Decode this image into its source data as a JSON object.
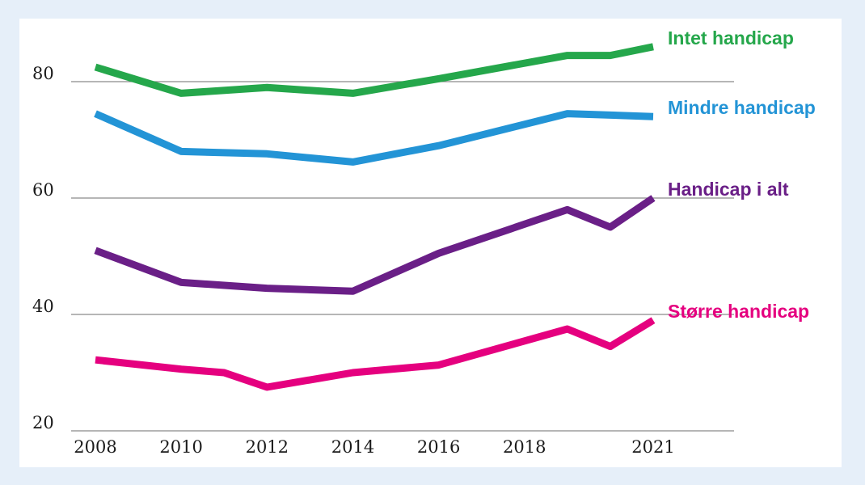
{
  "chart_data": {
    "type": "line",
    "title": "",
    "xlabel": "",
    "ylabel": "",
    "ylim": [
      20,
      90
    ],
    "xlim": [
      2008,
      2023
    ],
    "yticks": [
      20,
      40,
      60,
      80
    ],
    "xticks": [
      2008,
      2010,
      2012,
      2014,
      2016,
      2018,
      2021
    ],
    "xtick_labels": [
      "2008",
      "2010",
      "2012",
      "2014",
      "2016",
      "2018",
      "2021"
    ],
    "ytick_labels": [
      "20",
      "40",
      "60",
      "80"
    ],
    "grid": true,
    "series": [
      {
        "name": "Intet handicap",
        "color": "#25a74b",
        "x": [
          2008,
          2010,
          2012,
          2014,
          2016,
          2019,
          2020,
          2021
        ],
        "values": [
          82.5,
          78,
          79,
          78,
          80.5,
          84.5,
          84.5,
          86
        ]
      },
      {
        "name": "Mindre handicap",
        "color": "#2394d6",
        "x": [
          2008,
          2010,
          2012,
          2014,
          2016,
          2019,
          2021
        ],
        "values": [
          74.5,
          68,
          67.6,
          66.2,
          69,
          74.5,
          74
        ]
      },
      {
        "name": "Handicap i alt",
        "color": "#6a1f87",
        "x": [
          2008,
          2010,
          2012,
          2014,
          2016,
          2019,
          2020,
          2021
        ],
        "values": [
          51,
          45.5,
          44.5,
          44,
          50.5,
          58,
          55,
          60
        ]
      },
      {
        "name": "Større handicap",
        "color": "#e5007f",
        "x": [
          2008,
          2010,
          2011,
          2012,
          2014,
          2016,
          2019,
          2020,
          2021
        ],
        "values": [
          32.2,
          30.6,
          30,
          27.5,
          30,
          31.3,
          37.5,
          34.5,
          39
        ]
      }
    ]
  }
}
